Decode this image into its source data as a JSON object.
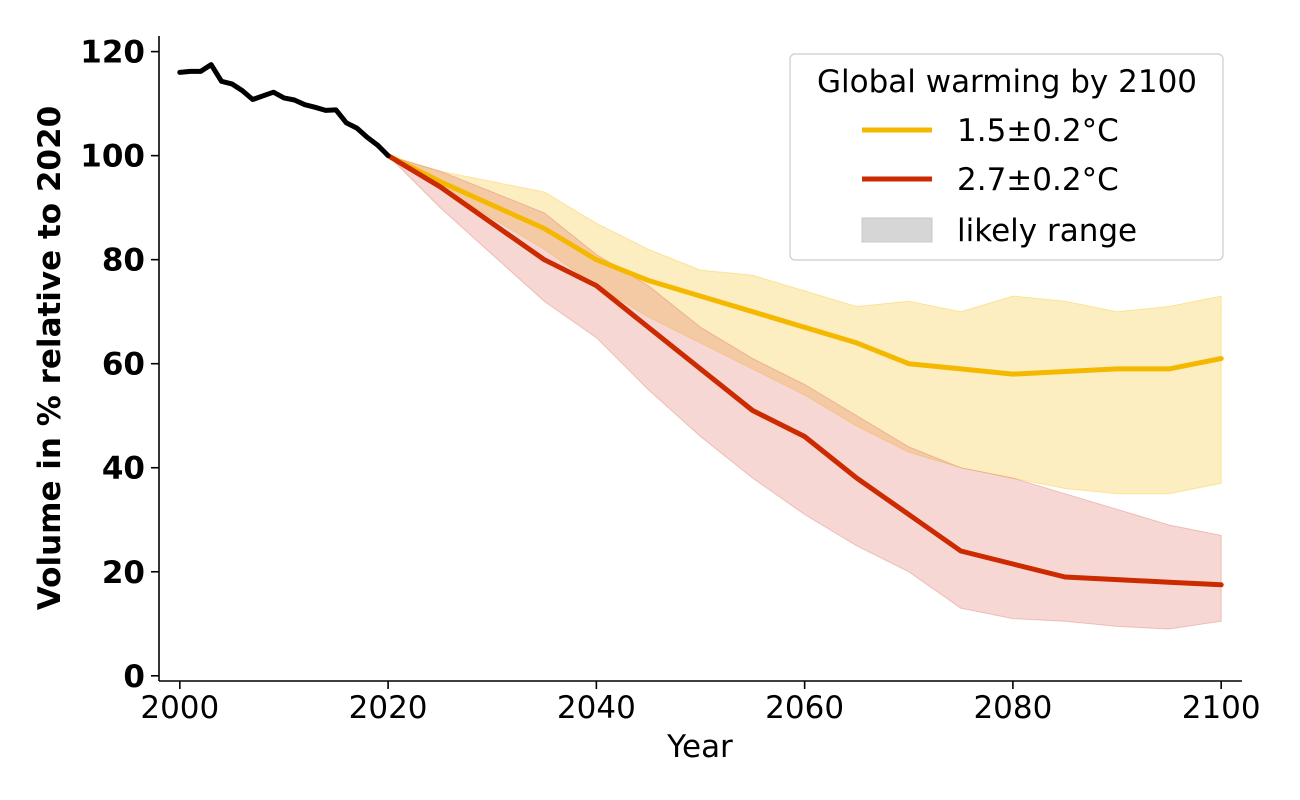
{
  "chart_data": {
    "type": "line",
    "title": "",
    "xlabel": "Year",
    "ylabel": "Volume in % relative to 2020",
    "xlim": [
      1998,
      2102
    ],
    "ylim": [
      -1,
      123
    ],
    "xticks": [
      2000,
      2020,
      2040,
      2060,
      2080,
      2100
    ],
    "yticks": [
      0,
      20,
      40,
      60,
      80,
      100,
      120
    ],
    "xtick_labels": [
      "2000",
      "2020",
      "2040",
      "2060",
      "2080",
      "2100"
    ],
    "ytick_labels": [
      "0",
      "20",
      "40",
      "60",
      "80",
      "100",
      "120"
    ],
    "legend": {
      "title": "Global warming by 2100",
      "placement": "top-right",
      "entries": [
        "1.5±0.2°C",
        "2.7±0.2°C",
        "likely range"
      ]
    },
    "historical": {
      "name": "observed",
      "color": "#000000",
      "x": [
        2000,
        2001,
        2002,
        2003,
        2004,
        2005,
        2006,
        2007,
        2008,
        2009,
        2010,
        2011,
        2012,
        2013,
        2014,
        2015,
        2016,
        2017,
        2018,
        2019,
        2020
      ],
      "y": [
        116,
        116.2,
        116.2,
        117.5,
        114.3,
        113.8,
        112.5,
        110.8,
        111.5,
        112.2,
        111.1,
        110.7,
        109.8,
        109.3,
        108.7,
        108.8,
        106.3,
        105.3,
        103.5,
        102,
        100
      ]
    },
    "series": [
      {
        "name": "1.5±0.2°C",
        "color": "#f5b800",
        "band_color": "#f7c21a",
        "x": [
          2020,
          2025,
          2030,
          2035,
          2040,
          2045,
          2050,
          2055,
          2060,
          2065,
          2070,
          2075,
          2080,
          2085,
          2090,
          2095,
          2100
        ],
        "y": [
          100,
          95,
          90.5,
          86,
          80,
          76,
          73,
          70,
          67,
          64,
          60,
          59,
          58,
          58.5,
          59,
          59,
          61
        ],
        "lower": [
          100,
          94,
          88,
          82,
          75,
          69,
          64,
          59,
          54,
          48,
          43,
          40,
          38,
          36,
          35,
          35,
          37
        ],
        "upper": [
          100,
          97,
          95,
          93,
          87,
          82,
          78,
          77,
          74,
          71,
          72,
          70,
          73,
          72,
          70,
          71,
          73
        ]
      },
      {
        "name": "2.7±0.2°C",
        "color": "#cc2a00",
        "band_color": "#de6d5e",
        "x": [
          2020,
          2025,
          2030,
          2035,
          2040,
          2045,
          2050,
          2055,
          2060,
          2065,
          2070,
          2075,
          2080,
          2085,
          2090,
          2095,
          2100
        ],
        "y": [
          100,
          94,
          87,
          80,
          75,
          67,
          59,
          51,
          46,
          38,
          31,
          24,
          21.5,
          19,
          18.5,
          18,
          17.5
        ],
        "lower": [
          100,
          90,
          81,
          72,
          65,
          55,
          46,
          38,
          31,
          25,
          20,
          13,
          11,
          10.5,
          9.5,
          9,
          10.5
        ],
        "upper": [
          100,
          97,
          93,
          89,
          81,
          75,
          67,
          61,
          56,
          50,
          44,
          40,
          38,
          35,
          32,
          29,
          27
        ]
      }
    ]
  }
}
